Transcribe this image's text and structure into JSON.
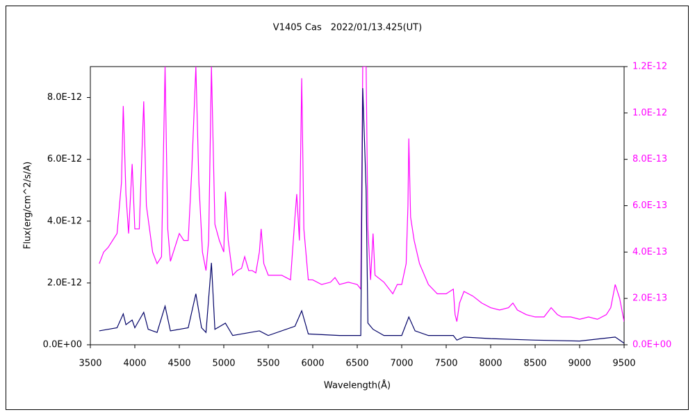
{
  "chart_data": {
    "type": "line",
    "title": "V1405 Cas　2022/01/13.425(UT)",
    "x_label": "Wavelength(Å)",
    "y_label": "Flux(erg/cm^2/s/A)",
    "xlim": [
      3500,
      9500
    ],
    "xticks": [
      3500,
      4000,
      4500,
      5000,
      5500,
      6000,
      6500,
      7000,
      7500,
      8000,
      8500,
      9000,
      9500
    ],
    "ylim": [
      0,
      9e-12
    ],
    "yticks": [
      {
        "value": 0,
        "label": "0.0E+00"
      },
      {
        "value": 2e-12,
        "label": "2.0E-12"
      },
      {
        "value": 4e-12,
        "label": "4.0E-12"
      },
      {
        "value": 6e-12,
        "label": "6.0E-12"
      },
      {
        "value": 8e-12,
        "label": "8.0E-12"
      }
    ],
    "y2lim": [
      0,
      1.2e-12
    ],
    "y2ticks": [
      {
        "value": 0,
        "label": "0.0E+00"
      },
      {
        "value": 2e-13,
        "label": "2.0E-13"
      },
      {
        "value": 4e-13,
        "label": "4.0E-13"
      },
      {
        "value": 6e-13,
        "label": "6.0E-13"
      },
      {
        "value": 8e-13,
        "label": "8.0E-13"
      },
      {
        "value": 1e-12,
        "label": "1.0E-12"
      },
      {
        "value": 1.2e-12,
        "label": "1.2E-12"
      }
    ],
    "y2_color": "#ff00ff",
    "series": [
      {
        "color": "#ff00ff",
        "axis": "y2",
        "x": [
          3600,
          3650,
          3700,
          3750,
          3800,
          3850,
          3870,
          3900,
          3930,
          3970,
          4000,
          4050,
          4100,
          4130,
          4200,
          4250,
          4300,
          4340,
          4370,
          4400,
          4450,
          4500,
          4550,
          4600,
          4640,
          4686,
          4720,
          4760,
          4800,
          4830,
          4861,
          4900,
          4950,
          5000,
          5018,
          5050,
          5100,
          5150,
          5200,
          5235,
          5280,
          5320,
          5360,
          5400,
          5420,
          5450,
          5500,
          5550,
          5600,
          5650,
          5700,
          5750,
          5800,
          5820,
          5850,
          5876,
          5900,
          5950,
          6000,
          6100,
          6200,
          6250,
          6300,
          6400,
          6500,
          6540,
          6562,
          6600,
          6620,
          6650,
          6678,
          6700,
          6800,
          6900,
          6950,
          7000,
          7050,
          7070,
          7080,
          7100,
          7140,
          7200,
          7300,
          7400,
          7500,
          7580,
          7600,
          7620,
          7650,
          7700,
          7800,
          7900,
          8000,
          8100,
          8200,
          8250,
          8300,
          8400,
          8500,
          8600,
          8680,
          8750,
          8800,
          8900,
          9000,
          9100,
          9200,
          9300,
          9350,
          9400,
          9450,
          9500
        ],
        "values": [
          3.5e-13,
          4e-13,
          4.2e-13,
          4.5e-13,
          4.8e-13,
          7e-13,
          1.03e-12,
          6.5e-13,
          4.8e-13,
          7.8e-13,
          5e-13,
          5e-13,
          1.05e-12,
          6e-13,
          4e-13,
          3.5e-13,
          3.8e-13,
          1.2e-12,
          5e-13,
          3.6e-13,
          4.2e-13,
          4.8e-13,
          4.5e-13,
          4.5e-13,
          7.5e-13,
          1.2e-12,
          7e-13,
          4e-13,
          3.2e-13,
          4.5e-13,
          1.2e-12,
          5.2e-13,
          4.5e-13,
          4e-13,
          6.6e-13,
          4.5e-13,
          3e-13,
          3.2e-13,
          3.3e-13,
          3.8e-13,
          3.2e-13,
          3.2e-13,
          3.1e-13,
          4e-13,
          5e-13,
          3.5e-13,
          3e-13,
          3e-13,
          3e-13,
          3e-13,
          2.9e-13,
          2.8e-13,
          5.5e-13,
          6.5e-13,
          4.5e-13,
          1.15e-12,
          5e-13,
          2.8e-13,
          2.8e-13,
          2.6e-13,
          2.7e-13,
          2.9e-13,
          2.6e-13,
          2.7e-13,
          2.6e-13,
          2.4e-13,
          1.2e-12,
          1.2e-12,
          5e-13,
          2.8e-13,
          4.8e-13,
          3e-13,
          2.7e-13,
          2.2e-13,
          2.6e-13,
          2.6e-13,
          3.5e-13,
          6e-13,
          8.9e-13,
          5.5e-13,
          4.5e-13,
          3.5e-13,
          2.6e-13,
          2.2e-13,
          2.2e-13,
          2.4e-13,
          1.3e-13,
          1e-13,
          1.8e-13,
          2.3e-13,
          2.1e-13,
          1.8e-13,
          1.6e-13,
          1.5e-13,
          1.6e-13,
          1.8e-13,
          1.5e-13,
          1.3e-13,
          1.2e-13,
          1.2e-13,
          1.6e-13,
          1.3e-13,
          1.2e-13,
          1.2e-13,
          1.1e-13,
          1.2e-13,
          1.1e-13,
          1.3e-13,
          1.6e-13,
          2.6e-13,
          2e-13,
          1e-13
        ]
      },
      {
        "color": "#000066",
        "axis": "y",
        "x": [
          3600,
          3700,
          3800,
          3870,
          3900,
          3970,
          4000,
          4100,
          4150,
          4250,
          4340,
          4400,
          4500,
          4600,
          4686,
          4750,
          4800,
          4861,
          4900,
          5018,
          5100,
          5400,
          5500,
          5800,
          5876,
          5950,
          6300,
          6540,
          6562,
          6600,
          6620,
          6678,
          6800,
          7000,
          7080,
          7150,
          7300,
          7580,
          7620,
          7700,
          8000,
          8500,
          9000,
          9400,
          9500
        ],
        "values": [
          4.5e-13,
          5e-13,
          5.5e-13,
          1e-12,
          6.5e-13,
          8e-13,
          5.5e-13,
          1.05e-12,
          5e-13,
          4e-13,
          1.25e-12,
          4.5e-13,
          5e-13,
          5.5e-13,
          1.65e-12,
          5.5e-13,
          4e-13,
          2.65e-12,
          5e-13,
          7e-13,
          3e-13,
          4.5e-13,
          3e-13,
          6e-13,
          1.1e-12,
          3.5e-13,
          3e-13,
          3e-13,
          8.3e-12,
          5e-12,
          7e-13,
          5e-13,
          3e-13,
          3e-13,
          9e-13,
          4.5e-13,
          3e-13,
          3e-13,
          1.5e-13,
          2.5e-13,
          2e-13,
          1.5e-13,
          1.2e-13,
          2.5e-13,
          5e-14
        ]
      }
    ]
  }
}
